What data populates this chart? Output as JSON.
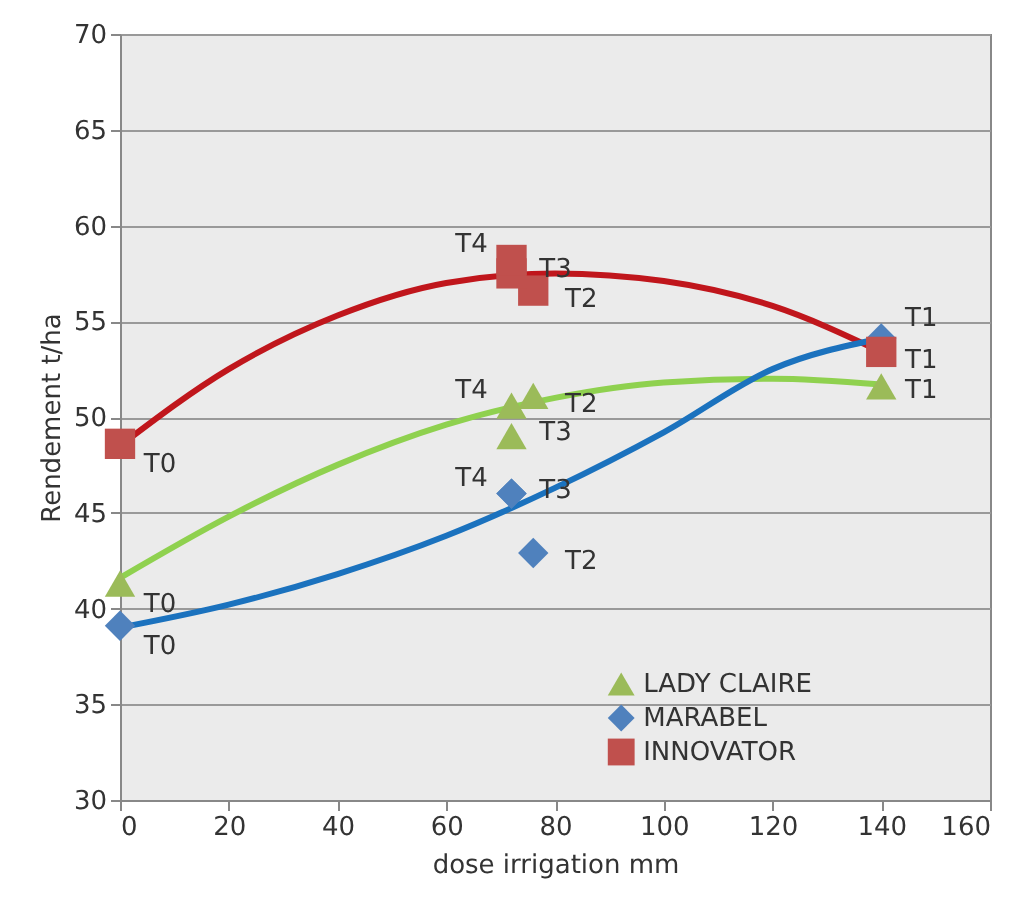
{
  "chart_data": {
    "type": "scatter",
    "xlabel": "dose irrigation mm",
    "ylabel": "Rendement t/ha",
    "xlim": [
      0,
      160
    ],
    "xticks": [
      0,
      20,
      40,
      60,
      80,
      100,
      120,
      140,
      160
    ],
    "ylim": [
      30,
      70
    ],
    "yticks": [
      30,
      35,
      40,
      45,
      50,
      55,
      60,
      65,
      70
    ],
    "grid": "y",
    "legend": "bottom",
    "series": [
      {
        "type": "line",
        "color": "#c0161c",
        "x": [
          0,
          20,
          40,
          60,
          80,
          100,
          120,
          140
        ],
        "values": [
          48.5,
          52.5,
          55.3,
          57,
          57.5,
          57.1,
          55.8,
          53.4
        ]
      },
      {
        "type": "line",
        "color": "#8fd14f",
        "x": [
          0,
          20,
          40,
          60,
          80,
          100,
          120,
          140
        ],
        "values": [
          41.6,
          44.8,
          47.5,
          49.6,
          51,
          51.8,
          52,
          51.7
        ]
      },
      {
        "type": "line",
        "color": "#1b72be",
        "x": [
          0,
          20,
          40,
          60,
          80,
          100,
          120,
          140
        ],
        "values": [
          39,
          40.2,
          41.8,
          43.8,
          46.3,
          49.2,
          52.5,
          54.1
        ]
      },
      {
        "name": "LADY CLAIRE",
        "color": "#9bbb59",
        "marker": "triangle",
        "x": [
          0,
          140,
          76,
          72,
          72
        ],
        "values": [
          41.3,
          51.6,
          51.1,
          49,
          50.6
        ],
        "value_labels": [
          "T0",
          "T1",
          "T2",
          "T3",
          "T4"
        ]
      },
      {
        "name": "MARABEL",
        "color": "#4f81bd",
        "marker": "diamond",
        "x": [
          0,
          140,
          76,
          72,
          72
        ],
        "values": [
          39.1,
          54.1,
          42.9,
          46,
          46
        ],
        "value_labels": [
          "T0",
          "T1",
          "T2",
          "T3",
          "T4"
        ]
      },
      {
        "name": "INNOVATOR",
        "color": "#c0504d",
        "marker": "square",
        "x": [
          0,
          140,
          76,
          72,
          72
        ],
        "values": [
          48.6,
          53.4,
          56.6,
          57.5,
          58.2
        ],
        "value_labels": [
          "T0",
          "T1",
          "T2",
          "T3",
          "T4"
        ]
      }
    ]
  }
}
